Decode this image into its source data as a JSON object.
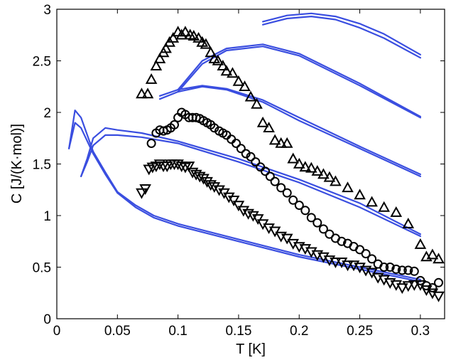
{
  "chart_data": {
    "type": "scatter",
    "title": "",
    "xlabel": "T [K]",
    "ylabel": "C [J/(K·mol)]",
    "xlim": [
      0,
      0.32
    ],
    "ylim": [
      0,
      3
    ],
    "xticks": [
      0,
      0.05,
      0.1,
      0.15,
      0.2,
      0.25,
      0.3
    ],
    "xtick_labels": [
      "0",
      "0.05",
      "0.1",
      "0.15",
      "0.2",
      "0.25",
      "0.3"
    ],
    "yticks": [
      0,
      0.5,
      1,
      1.5,
      2,
      2.5,
      3
    ],
    "ytick_labels": [
      "0",
      "0.5",
      "1",
      "1.5",
      "2",
      "2.5",
      "3"
    ],
    "grid": false,
    "legend": "none",
    "line_color": "#3a4ee0",
    "marker_color": "#000000",
    "lines": [
      {
        "x": [
          0.01,
          0.015,
          0.02,
          0.03,
          0.04,
          0.05,
          0.065,
          0.08,
          0.1,
          0.15,
          0.2,
          0.25,
          0.3
        ],
        "y": [
          1.65,
          1.9,
          1.85,
          1.6,
          1.4,
          1.22,
          1.08,
          0.98,
          0.9,
          0.75,
          0.6,
          0.48,
          0.36
        ]
      },
      {
        "x": [
          0.01,
          0.015,
          0.02,
          0.03,
          0.04,
          0.05,
          0.065,
          0.08,
          0.1,
          0.15,
          0.2,
          0.25,
          0.3
        ],
        "y": [
          1.65,
          2.02,
          1.95,
          1.62,
          1.42,
          1.23,
          1.1,
          1.0,
          0.92,
          0.77,
          0.62,
          0.5,
          0.38
        ]
      },
      {
        "x": [
          0.02,
          0.025,
          0.03,
          0.04,
          0.05,
          0.07,
          0.1,
          0.15,
          0.2,
          0.25,
          0.3
        ],
        "y": [
          1.38,
          1.55,
          1.75,
          1.85,
          1.83,
          1.8,
          1.72,
          1.55,
          1.35,
          1.12,
          0.82
        ]
      },
      {
        "x": [
          0.02,
          0.025,
          0.03,
          0.04,
          0.05,
          0.07,
          0.1,
          0.15,
          0.2,
          0.25,
          0.3
        ],
        "y": [
          1.38,
          1.52,
          1.68,
          1.78,
          1.78,
          1.76,
          1.7,
          1.52,
          1.32,
          1.08,
          0.8
        ]
      },
      {
        "x": [
          0.085,
          0.1,
          0.12,
          0.14,
          0.17,
          0.2,
          0.25,
          0.3
        ],
        "y": [
          2.13,
          2.2,
          2.25,
          2.22,
          2.1,
          1.92,
          1.65,
          1.38
        ]
      },
      {
        "x": [
          0.085,
          0.1,
          0.12,
          0.14,
          0.17,
          0.2,
          0.25,
          0.3
        ],
        "y": [
          2.16,
          2.22,
          2.26,
          2.23,
          2.12,
          1.95,
          1.67,
          1.4
        ]
      },
      {
        "x": [
          0.1,
          0.12,
          0.14,
          0.17,
          0.2,
          0.25,
          0.3
        ],
        "y": [
          2.2,
          2.47,
          2.6,
          2.64,
          2.55,
          2.26,
          1.95
        ]
      },
      {
        "x": [
          0.1,
          0.12,
          0.14,
          0.17,
          0.2,
          0.25,
          0.3
        ],
        "y": [
          2.22,
          2.5,
          2.62,
          2.66,
          2.57,
          2.28,
          1.96
        ]
      },
      {
        "x": [
          0.17,
          0.19,
          0.21,
          0.23,
          0.25,
          0.27,
          0.3
        ],
        "y": [
          2.85,
          2.91,
          2.93,
          2.9,
          2.82,
          2.72,
          2.53
        ]
      },
      {
        "x": [
          0.17,
          0.19,
          0.21,
          0.23,
          0.25,
          0.27,
          0.3
        ],
        "y": [
          2.88,
          2.94,
          2.96,
          2.93,
          2.86,
          2.76,
          2.56
        ]
      }
    ],
    "series": [
      {
        "marker": "triangle-up",
        "x": [
          0.07,
          0.075,
          0.078,
          0.082,
          0.085,
          0.088,
          0.09,
          0.093,
          0.096,
          0.1,
          0.103,
          0.106,
          0.11,
          0.113,
          0.117,
          0.12,
          0.123,
          0.127,
          0.13,
          0.133,
          0.137,
          0.14,
          0.145,
          0.15,
          0.155,
          0.16,
          0.165,
          0.17,
          0.175,
          0.18,
          0.185,
          0.19,
          0.195,
          0.2,
          0.205,
          0.21,
          0.215,
          0.22,
          0.225,
          0.23,
          0.24,
          0.25,
          0.26,
          0.27,
          0.28,
          0.29,
          0.3,
          0.305,
          0.31,
          0.315
        ],
        "y": [
          2.18,
          2.18,
          2.32,
          2.45,
          2.52,
          2.58,
          2.62,
          2.68,
          2.72,
          2.78,
          2.75,
          2.78,
          2.75,
          2.74,
          2.72,
          2.68,
          2.66,
          2.58,
          2.52,
          2.5,
          2.45,
          2.4,
          2.38,
          2.3,
          2.25,
          2.15,
          2.08,
          1.9,
          1.85,
          1.73,
          1.7,
          1.7,
          1.55,
          1.5,
          1.47,
          1.46,
          1.43,
          1.4,
          1.37,
          1.33,
          1.27,
          1.2,
          1.13,
          1.08,
          1.03,
          0.92,
          0.72,
          0.6,
          0.62,
          0.58
        ]
      },
      {
        "marker": "circle",
        "x": [
          0.078,
          0.082,
          0.085,
          0.088,
          0.091,
          0.094,
          0.097,
          0.1,
          0.103,
          0.106,
          0.109,
          0.112,
          0.115,
          0.118,
          0.121,
          0.124,
          0.127,
          0.13,
          0.134,
          0.137,
          0.14,
          0.144,
          0.148,
          0.152,
          0.156,
          0.16,
          0.164,
          0.168,
          0.172,
          0.176,
          0.18,
          0.185,
          0.19,
          0.195,
          0.2,
          0.205,
          0.21,
          0.215,
          0.22,
          0.225,
          0.23,
          0.235,
          0.24,
          0.245,
          0.25,
          0.255,
          0.26,
          0.265,
          0.27,
          0.275,
          0.28,
          0.285,
          0.29,
          0.295,
          0.3,
          0.305,
          0.31,
          0.315
        ],
        "y": [
          1.7,
          1.8,
          1.83,
          1.82,
          1.83,
          1.85,
          1.88,
          1.95,
          2.0,
          1.98,
          1.95,
          1.95,
          1.95,
          1.94,
          1.92,
          1.9,
          1.88,
          1.85,
          1.82,
          1.8,
          1.78,
          1.74,
          1.7,
          1.65,
          1.6,
          1.57,
          1.52,
          1.47,
          1.43,
          1.38,
          1.33,
          1.27,
          1.22,
          1.15,
          1.1,
          1.05,
          0.98,
          0.93,
          0.87,
          0.82,
          0.78,
          0.75,
          0.73,
          0.7,
          0.67,
          0.63,
          0.58,
          0.53,
          0.5,
          0.5,
          0.48,
          0.47,
          0.47,
          0.46,
          0.37,
          0.32,
          0.3,
          0.35
        ]
      },
      {
        "marker": "triangle-down",
        "x": [
          0.07,
          0.073,
          0.076,
          0.079,
          0.082,
          0.085,
          0.088,
          0.091,
          0.094,
          0.097,
          0.1,
          0.103,
          0.106,
          0.109,
          0.112,
          0.115,
          0.118,
          0.121,
          0.124,
          0.127,
          0.13,
          0.134,
          0.138,
          0.142,
          0.146,
          0.15,
          0.154,
          0.158,
          0.162,
          0.166,
          0.17,
          0.175,
          0.18,
          0.185,
          0.19,
          0.195,
          0.2,
          0.205,
          0.21,
          0.215,
          0.22,
          0.225,
          0.23,
          0.235,
          0.24,
          0.245,
          0.25,
          0.255,
          0.26,
          0.265,
          0.27,
          0.275,
          0.28,
          0.285,
          0.29,
          0.295,
          0.3,
          0.305,
          0.31,
          0.315
        ],
        "y": [
          1.22,
          1.26,
          1.45,
          1.47,
          1.48,
          1.5,
          1.48,
          1.48,
          1.5,
          1.5,
          1.5,
          1.48,
          1.47,
          1.48,
          1.42,
          1.4,
          1.38,
          1.36,
          1.33,
          1.3,
          1.28,
          1.25,
          1.22,
          1.18,
          1.15,
          1.1,
          1.05,
          1.02,
          1.0,
          0.97,
          0.92,
          0.88,
          0.85,
          0.8,
          0.78,
          0.73,
          0.7,
          0.68,
          0.65,
          0.62,
          0.6,
          0.57,
          0.55,
          0.55,
          0.52,
          0.52,
          0.5,
          0.47,
          0.45,
          0.4,
          0.38,
          0.35,
          0.33,
          0.3,
          0.32,
          0.33,
          0.33,
          0.28,
          0.25,
          0.22
        ]
      }
    ]
  }
}
